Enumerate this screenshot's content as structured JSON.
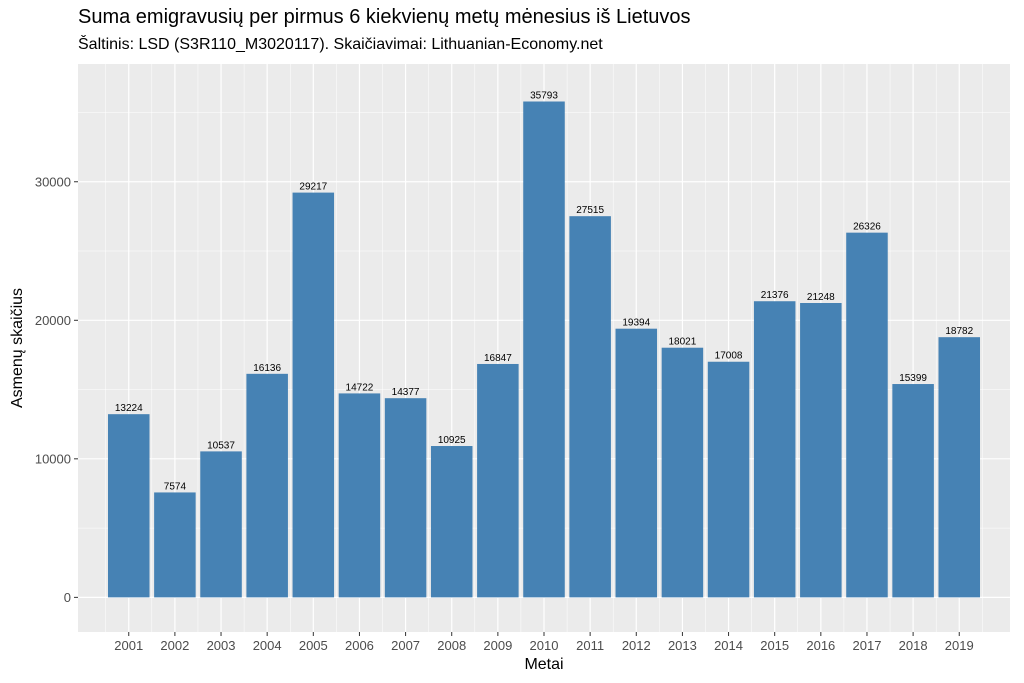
{
  "chart_data": {
    "type": "bar",
    "title": "Suma emigravusių per pirmus 6 kiekvienų metų mėnesius iš Lietuvos",
    "subtitle": "Šaltinis: LSD (S3R110_M3020117). Skaičiavimai: Lithuanian-Economy.net",
    "xlabel": "Metai",
    "ylabel": "Asmenų skaičius",
    "categories": [
      "2001",
      "2002",
      "2003",
      "2004",
      "2005",
      "2006",
      "2007",
      "2008",
      "2009",
      "2010",
      "2011",
      "2012",
      "2013",
      "2014",
      "2015",
      "2016",
      "2017",
      "2018",
      "2019"
    ],
    "values": [
      13224,
      7574,
      10537,
      16136,
      29217,
      14722,
      14377,
      10925,
      16847,
      35793,
      27515,
      19394,
      18021,
      17008,
      21376,
      21248,
      26326,
      15399,
      18782
    ],
    "yticks": [
      0,
      10000,
      20000,
      30000
    ],
    "ylim": [
      -2500,
      38500
    ],
    "grid": true,
    "bar_color": "#4682b4",
    "panel_color": "#ebebeb"
  }
}
